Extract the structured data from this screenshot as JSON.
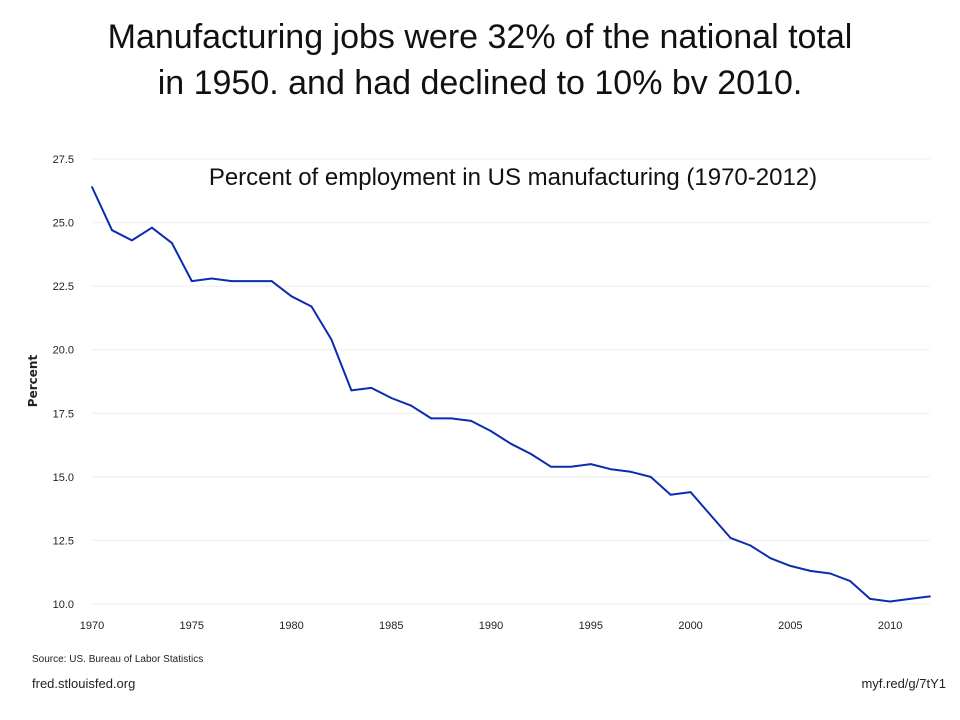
{
  "slide": {
    "title_line1": "Manufacturing jobs were 32% of the national total",
    "title_line2": "in 1950. and had declined to 10% bv 2010."
  },
  "footer": {
    "source": "Source: US. Bureau of Labor Statistics",
    "site": "fred.stlouisfed.org",
    "shortlink": "myf.red/g/7tY1"
  },
  "colors": {
    "line": "#0b2cb0",
    "grid": "#eeeeee",
    "tick_label": "#222222"
  },
  "chart_data": {
    "type": "line",
    "title": "Percent of employment in US manufacturing (1970-2012)",
    "xlabel": "",
    "ylabel": "Percent",
    "xlim": [
      1970,
      2012
    ],
    "ylim": [
      10.0,
      27.5
    ],
    "x_ticks": [
      1970,
      1975,
      1980,
      1985,
      1990,
      1995,
      2000,
      2005,
      2010
    ],
    "y_ticks": [
      10.0,
      12.5,
      15.0,
      17.5,
      20.0,
      22.5,
      25.0,
      27.5
    ],
    "y_tick_labels": [
      "10.0",
      "12.5",
      "15.0",
      "17.5",
      "20.0",
      "22.5",
      "25.0",
      "27.5"
    ],
    "grid": true,
    "x": [
      1970,
      1971,
      1972,
      1973,
      1974,
      1975,
      1976,
      1977,
      1978,
      1979,
      1980,
      1981,
      1982,
      1983,
      1984,
      1985,
      1986,
      1987,
      1988,
      1989,
      1990,
      1991,
      1992,
      1993,
      1994,
      1995,
      1996,
      1997,
      1998,
      1999,
      2000,
      2001,
      2002,
      2003,
      2004,
      2005,
      2006,
      2007,
      2008,
      2009,
      2010,
      2011,
      2012
    ],
    "series": [
      {
        "values": [
          26.4,
          24.7,
          24.3,
          24.8,
          24.2,
          22.7,
          22.8,
          22.7,
          22.7,
          22.7,
          22.1,
          21.7,
          20.4,
          18.4,
          18.5,
          18.1,
          17.8,
          17.3,
          17.3,
          17.2,
          16.8,
          16.3,
          15.9,
          15.4,
          15.4,
          15.5,
          15.3,
          15.2,
          15.0,
          14.3,
          14.4,
          13.5,
          12.6,
          12.3,
          11.8,
          11.5,
          11.3,
          11.2,
          10.9,
          10.2,
          10.1,
          10.2,
          10.3
        ]
      }
    ]
  }
}
